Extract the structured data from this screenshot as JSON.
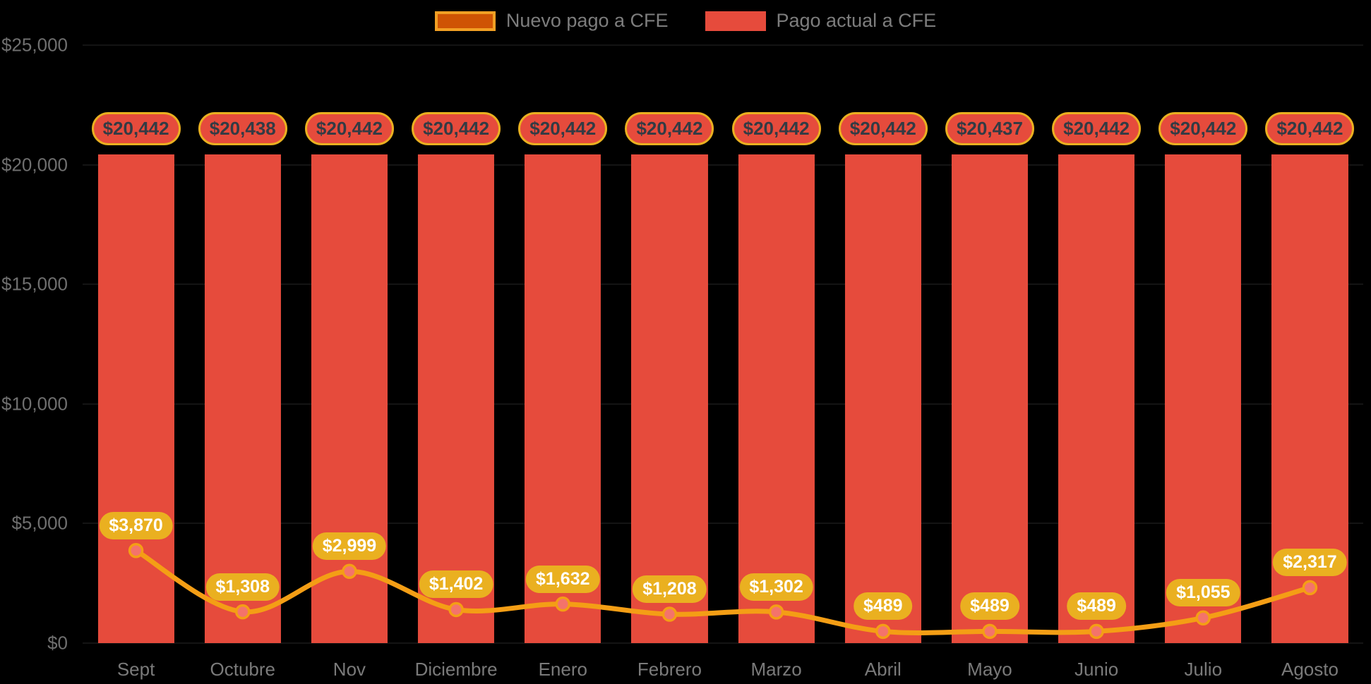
{
  "legend": {
    "items": [
      {
        "label": "Nuevo pago a CFE",
        "swatch_fill": "#CF5404",
        "swatch_border": "#F2A024"
      },
      {
        "label": "Pago actual a CFE",
        "swatch_fill": "#E64B3C",
        "swatch_border": "#E64B3C"
      }
    ]
  },
  "colors": {
    "background": "#000000",
    "bar": "#E64B3C",
    "line": "#F49E15",
    "marker_fill": "#F4736B",
    "marker_stroke": "#F49E15",
    "value_pill_yellow": "#EAB020",
    "bar_pill_fill": "#E64B3C",
    "bar_pill_border": "#EAB020",
    "bar_pill_text": "#333B44",
    "axis_text": "#6f6f6f",
    "grid": "rgba(255,255,255,0.08)"
  },
  "chart_data": {
    "type": "bar",
    "subtype": "bar-with-line-overlay",
    "title": "",
    "xlabel": "",
    "ylabel": "",
    "ylim": [
      0,
      25000
    ],
    "grid": true,
    "legend_position": "top-center",
    "categories": [
      "Sept",
      "Octubre",
      "Nov",
      "Diciembre",
      "Enero",
      "Febrero",
      "Marzo",
      "Abril",
      "Mayo",
      "Junio",
      "Julio",
      "Agosto"
    ],
    "y_ticks": [
      {
        "value": 0,
        "label": "$0"
      },
      {
        "value": 5000,
        "label": "$5,000"
      },
      {
        "value": 10000,
        "label": "$10,000"
      },
      {
        "value": 15000,
        "label": "$15,000"
      },
      {
        "value": 20000,
        "label": "$20,000"
      },
      {
        "value": 25000,
        "label": "$25,000"
      }
    ],
    "series": [
      {
        "name": "Pago actual a CFE",
        "type": "bar",
        "values": [
          20442,
          20438,
          20442,
          20442,
          20442,
          20442,
          20442,
          20442,
          20437,
          20442,
          20442,
          20442
        ],
        "labels": [
          "$20,442",
          "$20,438",
          "$20,442",
          "$20,442",
          "$20,442",
          "$20,442",
          "$20,442",
          "$20,442",
          "$20,437",
          "$20,442",
          "$20,442",
          "$20,442"
        ]
      },
      {
        "name": "Nuevo pago a CFE",
        "type": "line",
        "values": [
          3870,
          1308,
          2999,
          1402,
          1632,
          1208,
          1302,
          489,
          489,
          489,
          1055,
          2317
        ],
        "labels": [
          "$3,870",
          "$1,308",
          "$2,999",
          "$1,402",
          "$1,632",
          "$1,208",
          "$1,302",
          "$489",
          "$489",
          "$489",
          "$1,055",
          "$2,317"
        ]
      }
    ]
  }
}
